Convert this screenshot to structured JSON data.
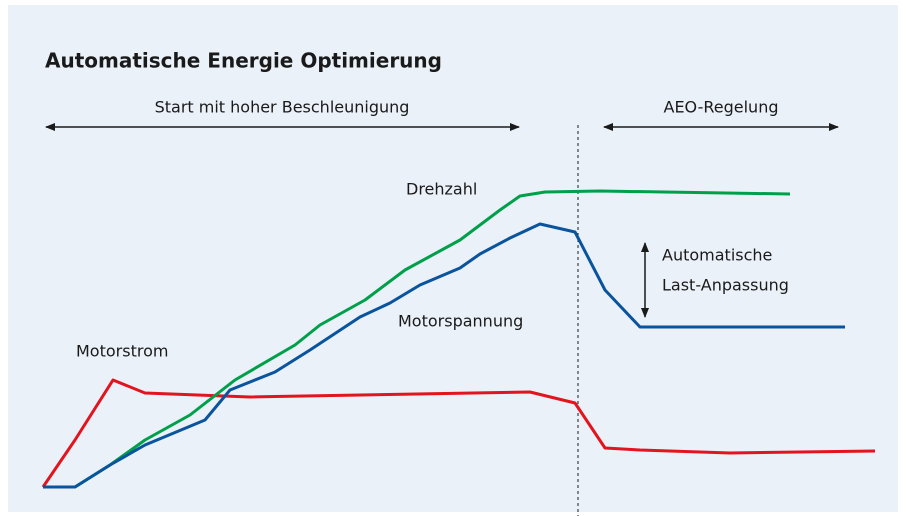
{
  "title": "Automatische Energie Optimierung",
  "phases": {
    "start": "Start mit hoher Beschleunigung",
    "aeo": "AEO-Regelung"
  },
  "curves": {
    "speed": "Drehzahl",
    "voltage": "Motorspannung",
    "current": "Motorstrom"
  },
  "adaptation": {
    "line1": "Automatische",
    "line2": "Last-Anpassung"
  }
}
